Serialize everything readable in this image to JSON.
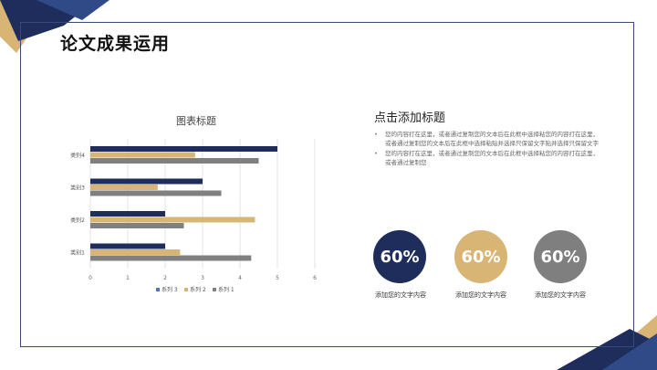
{
  "title": "论文成果运用",
  "chart_data": {
    "type": "bar",
    "orientation": "horizontal",
    "title": "图表标题",
    "categories": [
      "类别1",
      "类别2",
      "类别3",
      "类别4"
    ],
    "series": [
      {
        "name": "系列 1",
        "color": "#808080",
        "values": [
          4.3,
          2.5,
          3.5,
          4.5
        ]
      },
      {
        "name": "系列 2",
        "color": "#d8b574",
        "values": [
          2.4,
          4.4,
          1.8,
          2.8
        ]
      },
      {
        "name": "系列 3",
        "color": "#1e2d5c",
        "values": [
          2.0,
          2.0,
          3.0,
          5.0
        ]
      }
    ],
    "xlim": [
      0,
      6
    ],
    "x_ticks": [
      "0",
      "1",
      "2",
      "3",
      "4",
      "5",
      "6"
    ],
    "legend_order": [
      "系列 3",
      "系列 2",
      "系列 1"
    ],
    "legend_position": "bottom",
    "grid": true
  },
  "content": {
    "heading": "点击添加标题",
    "bullets": [
      "您的内容打在这里，或者通过复制您的文本后在此框中选择粘您的内容打在这里，或者通过复制您的文本后在此框中选择粘贴并选择只保留文字贴并选择只保留文字",
      "您的内容打在这里，或者通过复制您的文本后在此框中选择粘您的内容打在这里，或者通过复制您"
    ]
  },
  "stats": [
    {
      "value": "60%",
      "label": "添加您的文字内容",
      "color": "#1e2d5c"
    },
    {
      "value": "60%",
      "label": "添加您的文字内容",
      "color": "#d8b574"
    },
    {
      "value": "60%",
      "label": "添加您的文字内容",
      "color": "#7f7f7f"
    }
  ]
}
